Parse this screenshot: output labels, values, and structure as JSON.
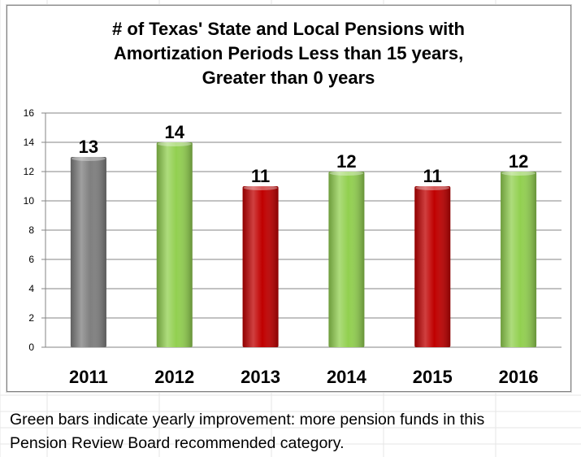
{
  "chart_data": {
    "type": "bar",
    "title_lines": [
      "# of Texas' State and Local Pensions with",
      "Amortization Periods Less than 15 years,",
      "Greater than 0 years"
    ],
    "categories": [
      "2011",
      "2012",
      "2013",
      "2014",
      "2015",
      "2016"
    ],
    "values": [
      13,
      14,
      11,
      12,
      11,
      12
    ],
    "data_labels": [
      "13",
      "14",
      "11",
      "12",
      "11",
      "12"
    ],
    "bar_colors": [
      "#7f7f7f",
      "#92d050",
      "#c00000",
      "#92d050",
      "#c00000",
      "#92d050"
    ],
    "ylim": [
      0,
      16
    ],
    "yticks": [
      0,
      2,
      4,
      6,
      8,
      10,
      12,
      14,
      16
    ],
    "ytick_labels": [
      "0",
      "2",
      "4",
      "6",
      "8",
      "10",
      "12",
      "14",
      "16"
    ],
    "grid": true,
    "legend": "none",
    "xlabel": "",
    "ylabel": ""
  },
  "caption_lines": [
    "Green bars indicate yearly improvement: more pension funds in this",
    "Pension Review Board recommended category."
  ]
}
